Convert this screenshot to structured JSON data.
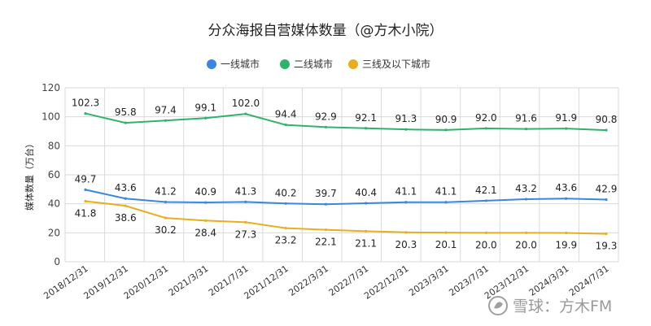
{
  "chart_data": {
    "type": "line",
    "title": "分众海报自营媒体数量（@方木小院）",
    "ylabel": "媒体数量（万台）",
    "xlabel": "",
    "ylim": [
      0,
      120
    ],
    "yticks": [
      0,
      20,
      40,
      60,
      80,
      100,
      120
    ],
    "grid": true,
    "legend_position": "top-center",
    "categories": [
      "2018/12/31",
      "2019/12/31",
      "2020/12/31",
      "2021/3/31",
      "2021/7/31",
      "2021/12/31",
      "2022/3/31",
      "2022/7/31",
      "2022/12/31",
      "2023/3/31",
      "2023/7/31",
      "2023/12/31",
      "2024/3/31",
      "2024/7/31"
    ],
    "series": [
      {
        "name": "一线城市",
        "color": "#3a86e0",
        "label_pos": "top",
        "values": [
          49.7,
          43.6,
          41.2,
          40.9,
          41.3,
          40.2,
          39.7,
          40.4,
          41.1,
          41.1,
          42.1,
          43.2,
          43.6,
          42.9
        ],
        "labels": [
          "49.7",
          "43.6",
          "41.2",
          "40.9",
          "41.3",
          "40.2",
          "39.7",
          "40.4",
          "41.1",
          "41.1",
          "42.1",
          "43.2",
          "43.6",
          "42.9"
        ]
      },
      {
        "name": "二线城市",
        "color": "#2fb36b",
        "label_pos": "top",
        "values": [
          102.3,
          95.8,
          97.4,
          99.1,
          102.0,
          94.4,
          92.9,
          92.1,
          91.3,
          90.9,
          92.0,
          91.6,
          91.9,
          90.8
        ],
        "labels": [
          "102.3",
          "95.8",
          "97.4",
          "99.1",
          "102.0",
          "94.4",
          "92.9",
          "92.1",
          "91.3",
          "90.9",
          "92.0",
          "91.6",
          "91.9",
          "90.8"
        ]
      },
      {
        "name": "三线及以下城市",
        "color": "#e9ae1e",
        "label_pos": "bottom",
        "values": [
          41.8,
          38.6,
          30.2,
          28.4,
          27.3,
          23.2,
          22.1,
          21.1,
          20.3,
          20.1,
          20.0,
          20.0,
          19.9,
          19.3
        ],
        "labels": [
          "41.8",
          "38.6",
          "30.2",
          "28.4",
          "27.3",
          "23.2",
          "22.1",
          "21.1",
          "20.3",
          "20.1",
          "20.0",
          "20.0",
          "19.9",
          "19.3"
        ]
      }
    ]
  },
  "watermark": {
    "text": "雪球：方木FM",
    "icon": "snowball-logo-icon"
  }
}
